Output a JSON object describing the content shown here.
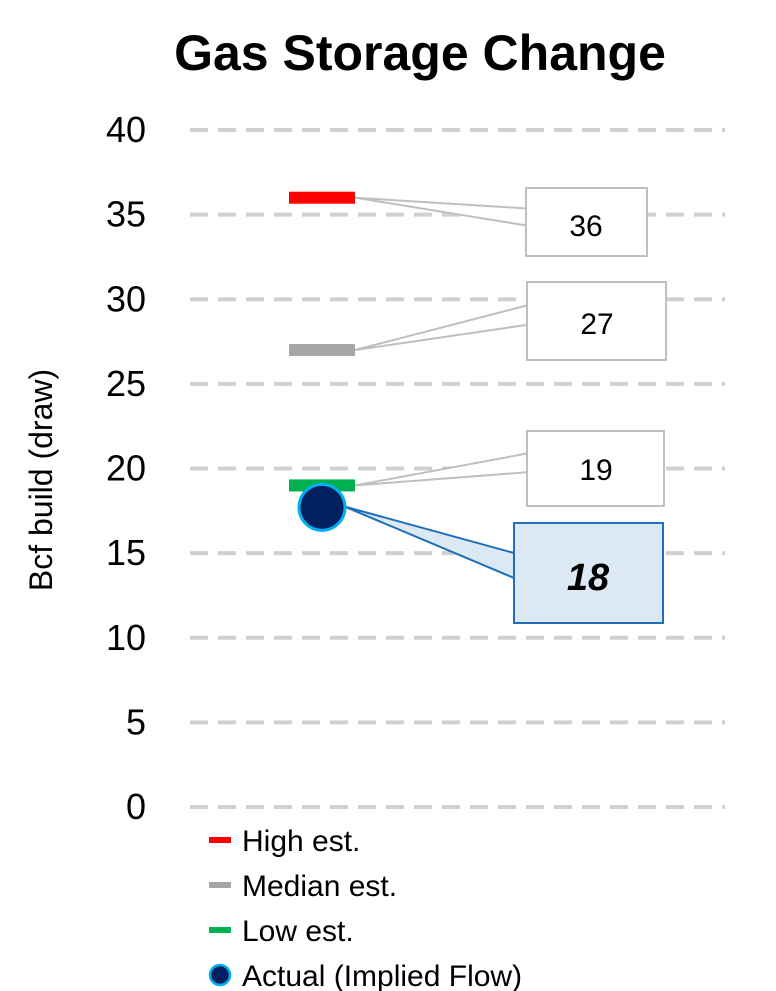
{
  "chart_data": {
    "type": "scatter",
    "title": "Gas Storage Change",
    "xlabel": "",
    "ylabel": "Bcf build (draw)",
    "ylim": [
      0,
      40
    ],
    "yticks": [
      0,
      5,
      10,
      15,
      20,
      25,
      30,
      35,
      40
    ],
    "grid": true,
    "grid_style": "dashed",
    "legend_position": "bottom",
    "series": [
      {
        "name": "High est.",
        "values": [
          36
        ],
        "color": "#ff0000",
        "marker": "dash",
        "label": "36"
      },
      {
        "name": "Median est.",
        "values": [
          27
        ],
        "color": "#a6a6a6",
        "marker": "dash",
        "label": "27"
      },
      {
        "name": "Low est.",
        "values": [
          19
        ],
        "color": "#00b050",
        "marker": "dash",
        "label": "19"
      },
      {
        "name": "Actual (Implied Flow)",
        "values": [
          18
        ],
        "color": "#002060",
        "edge_color": "#00b0f0",
        "marker": "circle",
        "label": "18"
      }
    ]
  }
}
